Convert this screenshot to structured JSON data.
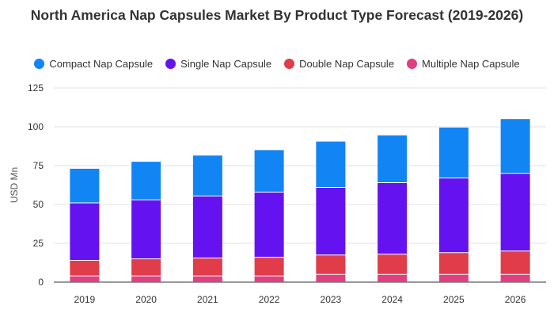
{
  "chart_data": {
    "type": "bar",
    "stacked": true,
    "title": "North America Nap Capsules Market By Product Type Forecast (2019-2026)",
    "xlabel": "",
    "ylabel": "USD Mn",
    "ylim": [
      0,
      125
    ],
    "yticks": [
      0,
      25,
      50,
      75,
      100,
      125
    ],
    "grid": true,
    "legend_position": "top",
    "categories": [
      "2019",
      "2020",
      "2021",
      "2022",
      "2023",
      "2024",
      "2025",
      "2026"
    ],
    "series": [
      {
        "name": "Multiple Nap Capsule",
        "color": "#e0407f",
        "values": [
          4,
          4,
          4,
          4,
          5,
          5,
          5,
          5
        ]
      },
      {
        "name": "Double Nap Capsule",
        "color": "#e03c4a",
        "values": [
          10,
          11,
          11.5,
          12,
          12.5,
          13,
          14,
          15
        ]
      },
      {
        "name": "Single Nap Capsule",
        "color": "#6512f0",
        "values": [
          37,
          38,
          40,
          42,
          43.5,
          46,
          48,
          50
        ]
      },
      {
        "name": "Compact Nap Capsule",
        "color": "#1285f5",
        "values": [
          22,
          24.5,
          26,
          27,
          29.5,
          30.5,
          32.5,
          35
        ]
      }
    ],
    "legend_order": [
      "Compact Nap Capsule",
      "Single Nap Capsule",
      "Double Nap Capsule",
      "Multiple Nap Capsule"
    ]
  }
}
